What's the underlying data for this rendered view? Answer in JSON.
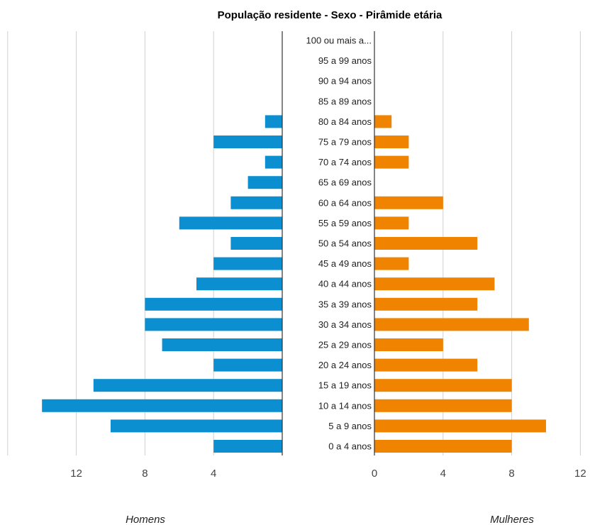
{
  "chart_data": {
    "type": "bar",
    "title": "População residente - Sexo - Pirâmide etária",
    "categories": [
      "100 ou mais a...",
      "95 a 99 anos",
      "90 a 94 anos",
      "85 a 89 anos",
      "80 a 84 anos",
      "75 a 79 anos",
      "70 a 74 anos",
      "65 a 69 anos",
      "60 a 64 anos",
      "55 a 59 anos",
      "50 a 54 anos",
      "45 a 49 anos",
      "40 a 44 anos",
      "35 a 39 anos",
      "30 a 34 anos",
      "25 a 29 anos",
      "20 a 24 anos",
      "15 a 19 anos",
      "10 a 14 anos",
      "5 a 9 anos",
      "0 a 4 anos"
    ],
    "series": [
      {
        "name": "Homens",
        "color": "#0b8fd1",
        "values": [
          0,
          0,
          0,
          0,
          1,
          4,
          1,
          2,
          3,
          6,
          3,
          4,
          5,
          8,
          8,
          7,
          4,
          11,
          14,
          10,
          4
        ]
      },
      {
        "name": "Mulheres",
        "color": "#f08300",
        "values": [
          0,
          0,
          0,
          0,
          1,
          2,
          2,
          0,
          4,
          2,
          6,
          2,
          7,
          6,
          9,
          4,
          6,
          8,
          8,
          10,
          8
        ]
      }
    ],
    "left_ticks": [
      "12",
      "8",
      "4"
    ],
    "right_ticks": [
      "0",
      "4",
      "8",
      "12"
    ],
    "xlim": [
      0,
      16
    ],
    "grid": true
  }
}
